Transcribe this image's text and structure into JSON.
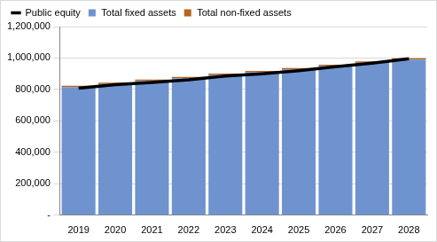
{
  "chart_data": {
    "type": "bar",
    "stacked": true,
    "legend": "top",
    "grid": true,
    "categories": [
      "2019",
      "2020",
      "2021",
      "2022",
      "2023",
      "2024",
      "2025",
      "2026",
      "2027",
      "2028"
    ],
    "series": [
      {
        "name": "Total non-fixed assets",
        "color": "#b5651d",
        "type": "bar",
        "values": [
          8000,
          8000,
          8000,
          8000,
          8000,
          8000,
          8000,
          8000,
          8000,
          8000
        ]
      },
      {
        "name": "Total fixed assets",
        "color": "#6f93cf",
        "type": "bar",
        "values": [
          815000,
          835000,
          855000,
          872000,
          893000,
          910000,
          928000,
          950000,
          970000,
          990000
        ]
      },
      {
        "name": "Public equity",
        "color": "#000000",
        "type": "line",
        "values": [
          808000,
          830000,
          845000,
          862000,
          885000,
          900000,
          920000,
          945000,
          968000,
          995000
        ]
      }
    ],
    "ylim": [
      0,
      1200000
    ],
    "yticks": [
      {
        "value": 0,
        "label": "-"
      },
      {
        "value": 200000,
        "label": "200,000"
      },
      {
        "value": 400000,
        "label": "400,000"
      },
      {
        "value": 600000,
        "label": "600,000"
      },
      {
        "value": 800000,
        "label": "800,000"
      },
      {
        "value": 1000000,
        "label": "1,000,000"
      },
      {
        "value": 1200000,
        "label": "1,200,000"
      }
    ]
  }
}
